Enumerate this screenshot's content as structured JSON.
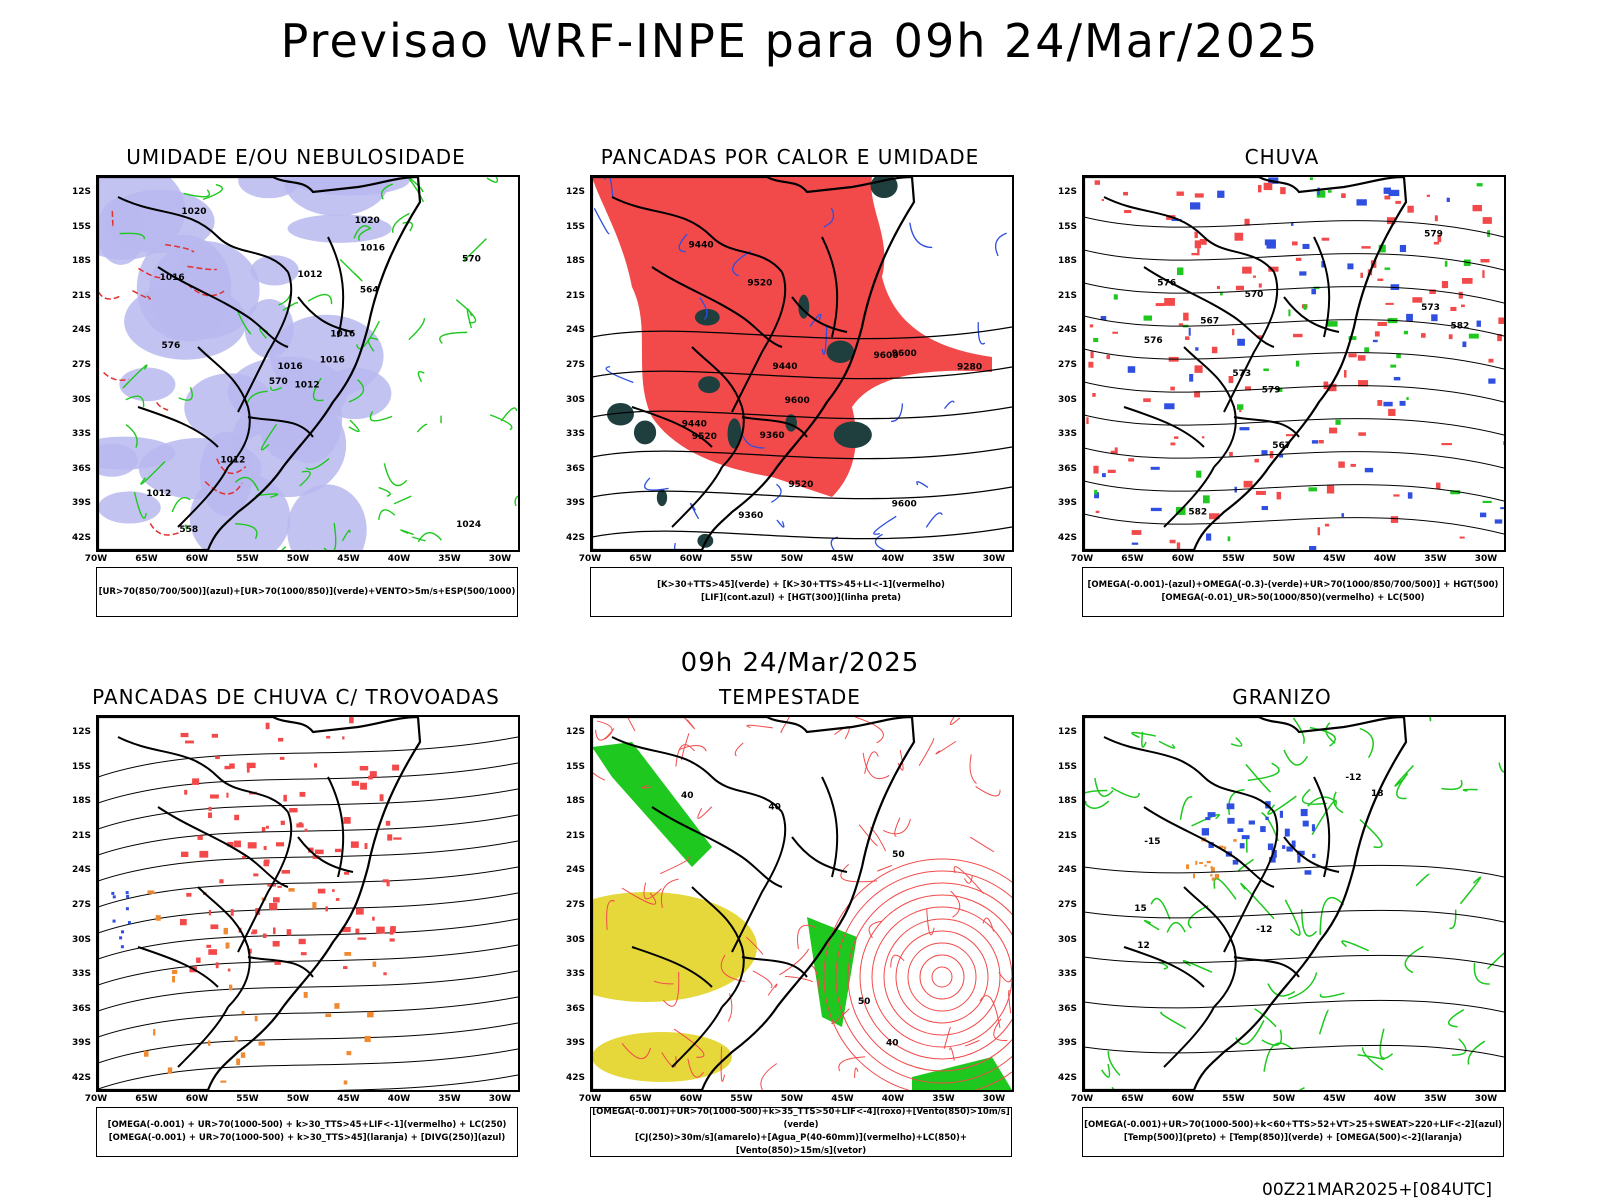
{
  "title": "Previsao WRF-INPE  para 09h 24/Mar/2025",
  "middle_title": "09h 24/Mar/2025",
  "run_label": "00Z21MAR2025+[084UTC]",
  "axis": {
    "lat_labels": [
      "12S",
      "15S",
      "18S",
      "21S",
      "24S",
      "27S",
      "30S",
      "33S",
      "36S",
      "39S",
      "42S"
    ],
    "lon_labels": [
      "70W",
      "65W",
      "60W",
      "55W",
      "50W",
      "45W",
      "40W",
      "35W",
      "30W"
    ]
  },
  "panels": [
    {
      "title": "UMIDADE E/OU NEBULOSIDADE",
      "legend": [
        "[UR>70(850/700/500)](azul)+[UR>70(1000/850)](verde)+VENTO>5m/s+ESP(500/1000)"
      ],
      "contour_labels": [
        "1012",
        "1016",
        "1016",
        "1012",
        "1016",
        "1012",
        "1020",
        "1012",
        "1016",
        "1016",
        "1020",
        "1024",
        "576",
        "570",
        "570",
        "564",
        "558"
      ]
    },
    {
      "title": "PANCADAS POR CALOR E UMIDADE",
      "legend": [
        "[K>30+TTS>45](verde) + [K>30+TTS>45+LI<-1](vermelho)",
        "[LIF](cont.azul) + [HGT(300)](linha preta)"
      ],
      "contour_labels": [
        "9600",
        "9600",
        "9600",
        "9600",
        "9520",
        "9520",
        "9440",
        "9440",
        "9360",
        "9280",
        "9520",
        "9440",
        "9360"
      ]
    },
    {
      "title": "CHUVA",
      "legend": [
        "[OMEGA(-0.001)-(azul)+OMEGA(-0.3)-(verde)+UR>70(1000/850/700/500)] + HGT(500)",
        "[OMEGA(-0.01)_UR>50(1000/850)(vermelho) + LC(500)"
      ],
      "contour_labels": [
        "582",
        "579",
        "576",
        "573",
        "570",
        "567",
        "582",
        "579",
        "576",
        "573",
        "567"
      ]
    },
    {
      "title": "PANCADAS DE CHUVA C/ TROVOADAS",
      "legend": [
        "[OMEGA(-0.001) + UR>70(1000-500) + k>30_TTS>45+LIF<-1](vermelho) + LC(250)",
        "[OMEGA(-0.001) + UR>70(1000-500) + k>30_TTS>45](laranja) + [DIVG(250)](azul)"
      ],
      "contour_labels": []
    },
    {
      "title": "TEMPESTADE",
      "legend": [
        "[OMEGA(-0.001)+UR>70(1000-500)+k>35_TTS>50+LIF<-4](roxo)+[Vento(850)>10m/s](verde)",
        "[CJ(250)>30m/s](amarelo)+[Agua_P(40-60mm)](vermelho)+LC(850)+[Vento(850)>15m/s](vetor)"
      ],
      "contour_labels": [
        "40",
        "40",
        "50",
        "50",
        "40"
      ]
    },
    {
      "title": "GRANIZO",
      "legend": [
        "[OMEGA(-0.001)+UR>70(1000-500)+k<60+TTS>52+VT>25+SWEAT>220+LIF<-2](azul)",
        "[Temp(500)](preto) + [Temp(850)](verde) + [OMEGA(500)<-2](laranja)"
      ],
      "contour_labels": [
        "-12",
        "-12",
        "-15",
        "15",
        "12",
        "18"
      ]
    }
  ],
  "colors": {
    "blue": "#2f4fe0",
    "lavender": "#b9b9f0",
    "green": "#1ec81e",
    "red": "#f24a4a",
    "orange": "#f08a30",
    "yellow": "#e6d83a",
    "purple": "#9b30c8",
    "darkteal": "#1f3f3f"
  }
}
